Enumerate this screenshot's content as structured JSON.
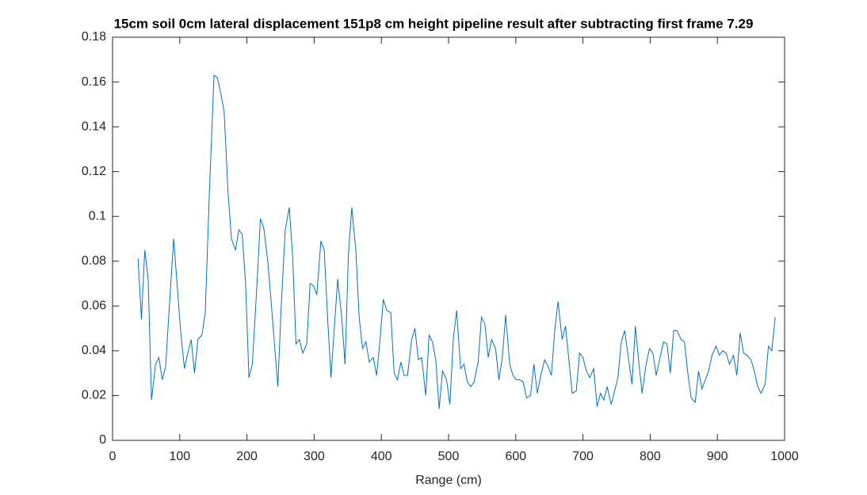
{
  "chart_data": {
    "type": "line",
    "title": "15cm soil 0cm lateral displacement 151p8 cm height pipeline result after subtracting first frame 7.29",
    "x_label": "Range (cm)",
    "color": "#0072bd",
    "xlim": [
      0,
      1000
    ],
    "xticks": [
      0,
      100,
      200,
      300,
      400,
      500,
      600,
      700,
      800,
      900,
      1000
    ],
    "ylim": [
      0,
      0.18
    ],
    "yticks": [
      0,
      0.02,
      0.04,
      0.06,
      0.08,
      0.1,
      0.12,
      0.14,
      0.16,
      0.18
    ],
    "grid": false,
    "x": [
      38,
      43,
      48,
      53,
      58,
      64,
      69,
      74,
      79,
      85,
      91,
      96,
      101,
      107,
      112,
      117,
      122,
      127,
      133,
      138,
      144,
      151,
      156,
      161,
      166,
      172,
      177,
      183,
      188,
      193,
      198,
      203,
      208,
      215,
      220,
      225,
      231,
      236,
      241,
      246,
      251,
      257,
      263,
      268,
      273,
      278,
      283,
      289,
      294,
      299,
      304,
      310,
      315,
      320,
      325,
      330,
      335,
      341,
      346,
      351,
      356,
      362,
      367,
      372,
      377,
      382,
      388,
      393,
      398,
      403,
      408,
      414,
      419,
      424,
      429,
      434,
      439,
      445,
      450,
      455,
      460,
      466,
      471,
      476,
      481,
      486,
      491,
      497,
      502,
      507,
      512,
      518,
      523,
      528,
      533,
      538,
      544,
      549,
      554,
      559,
      564,
      570,
      575,
      580,
      585,
      591,
      596,
      601,
      606,
      611,
      616,
      622,
      627,
      632,
      638,
      643,
      648,
      653,
      658,
      663,
      669,
      674,
      679,
      684,
      690,
      695,
      700,
      705,
      710,
      716,
      721,
      726,
      731,
      736,
      742,
      747,
      752,
      757,
      762,
      768,
      773,
      778,
      783,
      788,
      794,
      799,
      804,
      809,
      814,
      820,
      825,
      830,
      835,
      840,
      846,
      851,
      856,
      861,
      867,
      872,
      877,
      882,
      887,
      892,
      898,
      903,
      908,
      913,
      918,
      924,
      929,
      934,
      939,
      944,
      950,
      955,
      960,
      965,
      971,
      976,
      981,
      986
    ],
    "values": [
      0.081,
      0.054,
      0.085,
      0.072,
      0.018,
      0.034,
      0.037,
      0.027,
      0.033,
      0.062,
      0.09,
      0.07,
      0.05,
      0.032,
      0.039,
      0.045,
      0.03,
      0.045,
      0.047,
      0.057,
      0.11,
      0.163,
      0.162,
      0.155,
      0.147,
      0.11,
      0.09,
      0.085,
      0.094,
      0.092,
      0.07,
      0.028,
      0.034,
      0.07,
      0.099,
      0.095,
      0.08,
      0.062,
      0.043,
      0.024,
      0.06,
      0.094,
      0.104,
      0.082,
      0.043,
      0.045,
      0.039,
      0.043,
      0.07,
      0.069,
      0.065,
      0.089,
      0.085,
      0.055,
      0.028,
      0.05,
      0.072,
      0.055,
      0.034,
      0.083,
      0.104,
      0.085,
      0.055,
      0.041,
      0.044,
      0.035,
      0.037,
      0.029,
      0.045,
      0.063,
      0.058,
      0.057,
      0.03,
      0.027,
      0.035,
      0.029,
      0.029,
      0.045,
      0.05,
      0.036,
      0.037,
      0.02,
      0.047,
      0.044,
      0.036,
      0.014,
      0.031,
      0.027,
      0.016,
      0.045,
      0.058,
      0.032,
      0.034,
      0.026,
      0.024,
      0.026,
      0.035,
      0.055,
      0.052,
      0.037,
      0.045,
      0.041,
      0.027,
      0.037,
      0.056,
      0.034,
      0.029,
      0.027,
      0.027,
      0.026,
      0.019,
      0.02,
      0.034,
      0.021,
      0.03,
      0.036,
      0.033,
      0.029,
      0.049,
      0.062,
      0.045,
      0.051,
      0.036,
      0.021,
      0.022,
      0.039,
      0.037,
      0.031,
      0.028,
      0.032,
      0.015,
      0.021,
      0.018,
      0.024,
      0.016,
      0.022,
      0.028,
      0.044,
      0.049,
      0.036,
      0.025,
      0.051,
      0.035,
      0.021,
      0.034,
      0.041,
      0.039,
      0.029,
      0.036,
      0.044,
      0.043,
      0.03,
      0.049,
      0.049,
      0.045,
      0.044,
      0.03,
      0.019,
      0.017,
      0.031,
      0.023,
      0.027,
      0.031,
      0.038,
      0.042,
      0.038,
      0.04,
      0.039,
      0.034,
      0.038,
      0.029,
      0.048,
      0.039,
      0.038,
      0.036,
      0.031,
      0.024,
      0.021,
      0.025,
      0.042,
      0.04,
      0.055
    ]
  }
}
